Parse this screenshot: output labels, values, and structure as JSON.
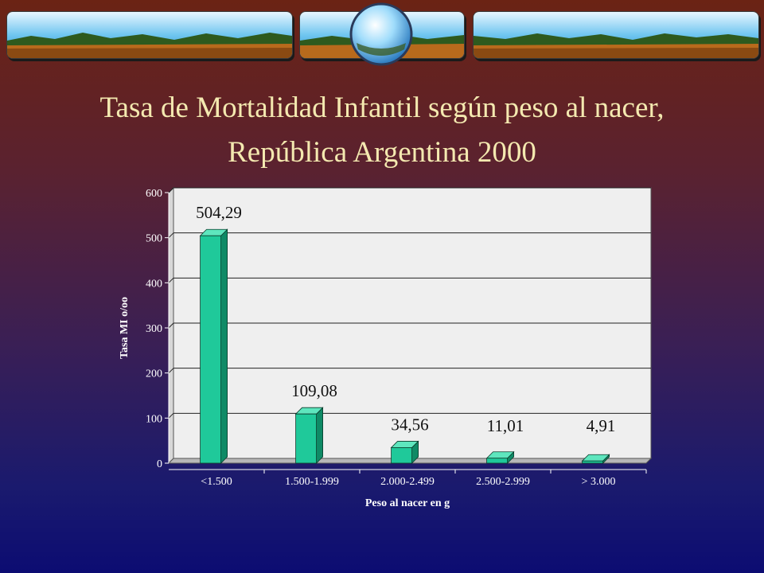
{
  "slide": {
    "title_line1": "Tasa de Mortalidad Infantil según peso al nacer,",
    "title_line2": "República Argentina 2000"
  },
  "colors": {
    "title": "#f4e9b0",
    "bar_front": "#1fc99a",
    "bar_top": "#5ee6be",
    "bar_side": "#0f8a66",
    "plot_back": "#efefef",
    "floor": "#b8b8b8",
    "label": "#111111"
  },
  "chart_data": {
    "type": "bar",
    "title": "",
    "xlabel": "Peso al nacer en g",
    "ylabel": "Tasa MI o/oo",
    "ylim": [
      0,
      600
    ],
    "yticks": [
      0,
      100,
      200,
      300,
      400,
      500,
      600
    ],
    "grid": true,
    "legend": "none",
    "categories": [
      "<1.500",
      "1.500-1.999",
      "2.000-2.499",
      "2.500-2.999",
      "> 3.000"
    ],
    "values": [
      504.29,
      109.08,
      34.56,
      11.01,
      4.91
    ],
    "data_labels": [
      "504,29",
      "109,08",
      "34,56",
      "11,01",
      "4,91"
    ]
  }
}
